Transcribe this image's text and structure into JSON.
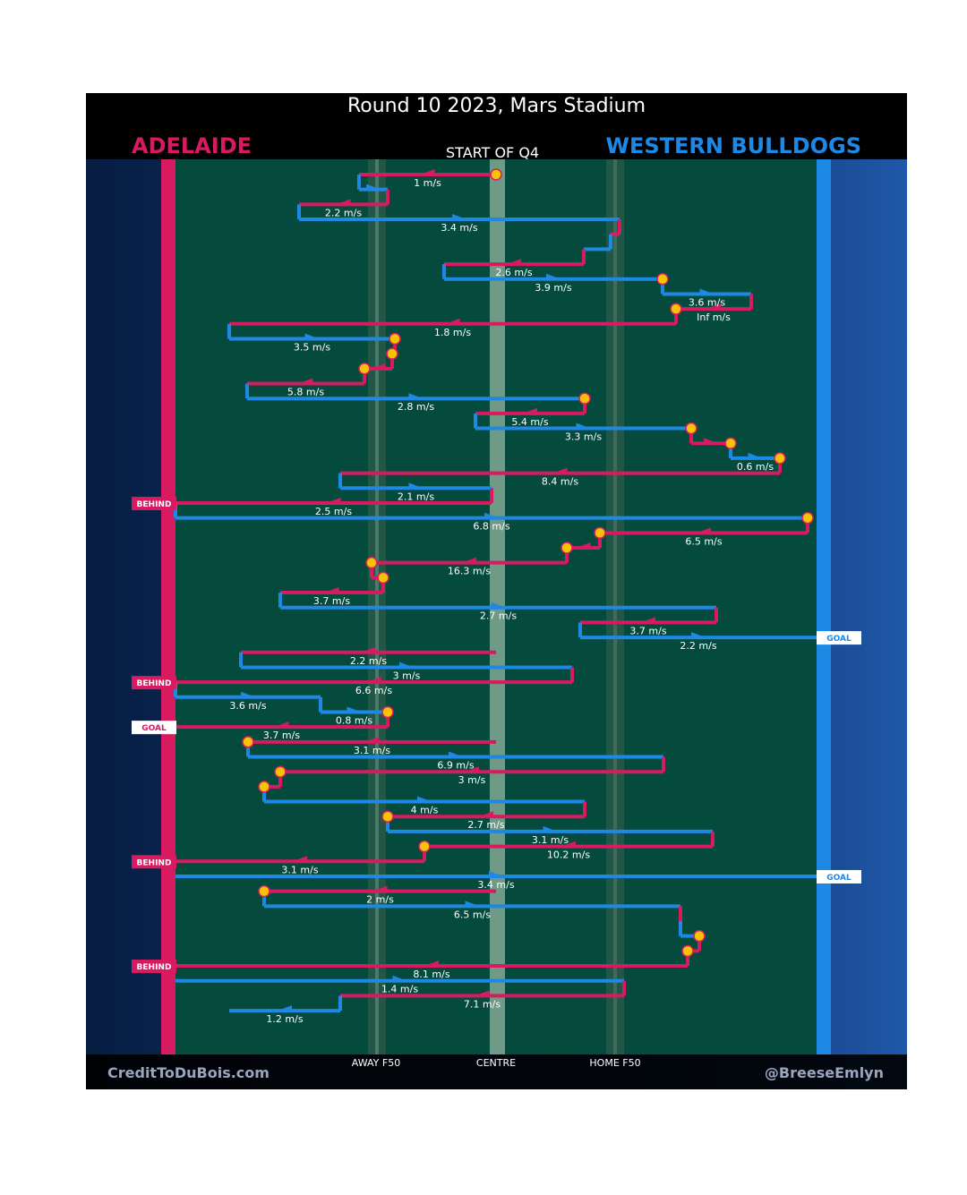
{
  "title": "Round 10 2023, Mars Stadium",
  "teams": {
    "away": "ADELAIDE",
    "home": "WESTERN BULLDOGS"
  },
  "period_label": "START OF Q4",
  "zone_labels": {
    "away_f50": "AWAY F50",
    "centre": "CENTRE",
    "home_f50": "HOME F50"
  },
  "credits": {
    "left": "CreditToDuBois.com",
    "right": "@BreeseEmlyn"
  },
  "colors": {
    "adelaide": "#d81b60",
    "bulldogs": "#1e88e5",
    "field": "#044b3e",
    "turnover_marker": "#f5c400"
  },
  "chart_data": {
    "type": "line",
    "chart_subtype": "possession chain",
    "x_axis": "field position",
    "ylim_rows": [
      0,
      60
    ],
    "legend": "none",
    "chain_start": {
      "row": 1,
      "x": 554
    },
    "chain": [
      {
        "team": "adelaide",
        "speed": "1 m/s",
        "x": 401,
        "row": 1
      },
      {
        "team": "bulldogs",
        "speed": "",
        "x": 433,
        "row": 2
      },
      {
        "team": "adelaide",
        "speed": "2.2 m/s",
        "x": 334,
        "row": 3
      },
      {
        "team": "bulldogs",
        "speed": "3.4 m/s",
        "x": 692,
        "row": 4
      },
      {
        "team": "adelaide",
        "speed": "",
        "x": 682,
        "row": 5
      },
      {
        "team": "bulldogs",
        "speed": "",
        "x": 652,
        "row": 6
      },
      {
        "team": "adelaide",
        "speed": "2.6 m/s",
        "x": 496,
        "row": 7
      },
      {
        "team": "bulldogs",
        "speed": "3.9 m/s",
        "x": 740,
        "row": 8,
        "marker": true
      },
      {
        "team": "bulldogs",
        "speed": "3.6 m/s",
        "x": 839,
        "row": 9
      },
      {
        "team": "adelaide",
        "speed": "Inf m/s",
        "x": 755,
        "row": 10,
        "marker": true
      },
      {
        "team": "adelaide",
        "speed": "1.8 m/s",
        "x": 256,
        "row": 11
      },
      {
        "team": "bulldogs",
        "speed": "3.5 m/s",
        "x": 441,
        "row": 12,
        "marker": true
      },
      {
        "team": "adelaide",
        "speed": "",
        "x": 438,
        "row": 13,
        "marker": true
      },
      {
        "team": "adelaide",
        "speed": "",
        "x": 407,
        "row": 14,
        "marker": true
      },
      {
        "team": "adelaide",
        "speed": "5.8 m/s",
        "x": 276,
        "row": 15
      },
      {
        "team": "bulldogs",
        "speed": "2.8 m/s",
        "x": 653,
        "row": 16,
        "marker": true
      },
      {
        "team": "adelaide",
        "speed": "5.4 m/s",
        "x": 531,
        "row": 17
      },
      {
        "team": "bulldogs",
        "speed": "3.3 m/s",
        "x": 772,
        "row": 18,
        "marker": true
      },
      {
        "team": "adelaide",
        "speed": "",
        "x": 816,
        "row": 19,
        "marker": true
      },
      {
        "team": "bulldogs",
        "speed": "0.6 m/s",
        "x": 871,
        "row": 20,
        "marker": true
      },
      {
        "team": "adelaide",
        "speed": "8.4 m/s",
        "x": 380,
        "row": 21
      },
      {
        "team": "bulldogs",
        "speed": "2.1 m/s",
        "x": 549,
        "row": 22
      },
      {
        "team": "adelaide",
        "speed": "2.5 m/s",
        "x": 196,
        "row": 23,
        "outcome": "BEHIND"
      },
      {
        "team": "bulldogs",
        "speed": "6.8 m/s",
        "x": 902,
        "row": 24,
        "marker": true
      },
      {
        "team": "adelaide",
        "speed": "6.5 m/s",
        "x": 670,
        "row": 25,
        "marker": true
      },
      {
        "team": "adelaide",
        "speed": "",
        "x": 633,
        "row": 26,
        "marker": true
      },
      {
        "team": "adelaide",
        "speed": "16.3 m/s",
        "x": 415,
        "row": 27,
        "marker": true
      },
      {
        "team": "adelaide",
        "speed": "",
        "x": 428,
        "row": 28,
        "marker": true
      },
      {
        "team": "adelaide",
        "speed": "3.7 m/s",
        "x": 313,
        "row": 29
      },
      {
        "team": "bulldogs",
        "speed": "2.7 m/s",
        "x": 800,
        "row": 30
      },
      {
        "team": "adelaide",
        "speed": "3.7 m/s",
        "x": 648,
        "row": 31
      },
      {
        "team": "bulldogs",
        "speed": "2.2 m/s",
        "x": 912,
        "row": 32,
        "outcome": "GOAL"
      },
      {
        "team": "adelaide",
        "speed": "2.2 m/s",
        "x": 269,
        "row": 33,
        "start": true
      },
      {
        "team": "bulldogs",
        "speed": "3 m/s",
        "x": 639,
        "row": 34
      },
      {
        "team": "adelaide",
        "speed": "6.6 m/s",
        "x": 196,
        "row": 35,
        "outcome": "BEHIND"
      },
      {
        "team": "bulldogs",
        "speed": "3.6 m/s",
        "x": 358,
        "row": 36
      },
      {
        "team": "bulldogs",
        "speed": "0.8 m/s",
        "x": 433,
        "row": 37,
        "marker": true
      },
      {
        "team": "adelaide",
        "speed": "3.7 m/s",
        "x": 196,
        "row": 38,
        "outcome": "GOAL"
      },
      {
        "team": "adelaide",
        "speed": "3.1 m/s",
        "x": 277,
        "row": 39,
        "start": true,
        "marker": true
      },
      {
        "team": "bulldogs",
        "speed": "6.9 m/s",
        "x": 741,
        "row": 40
      },
      {
        "team": "adelaide",
        "speed": "3 m/s",
        "x": 313,
        "row": 41,
        "marker": true
      },
      {
        "team": "adelaide",
        "speed": "",
        "x": 295,
        "row": 42,
        "marker": true
      },
      {
        "team": "bulldogs",
        "speed": "4 m/s",
        "x": 653,
        "row": 43
      },
      {
        "team": "adelaide",
        "speed": "2.7 m/s",
        "x": 433,
        "row": 44,
        "marker": true
      },
      {
        "team": "bulldogs",
        "speed": "3.1 m/s",
        "x": 796,
        "row": 45
      },
      {
        "team": "adelaide",
        "speed": "10.2 m/s",
        "x": 474,
        "row": 46,
        "marker": true
      },
      {
        "team": "adelaide",
        "speed": "3.1 m/s",
        "x": 196,
        "row": 47,
        "outcome": "BEHIND"
      },
      {
        "team": "bulldogs",
        "speed": "3.4 m/s",
        "x": 912,
        "row": 48,
        "start": true,
        "outcome": "GOAL"
      },
      {
        "team": "adelaide",
        "speed": "2 m/s",
        "x": 295,
        "row": 49,
        "start": true,
        "marker": true
      },
      {
        "team": "bulldogs",
        "speed": "6.5 m/s",
        "x": 760,
        "row": 50
      },
      {
        "team": "adelaide",
        "speed": "",
        "x": 760,
        "row": 51
      },
      {
        "team": "bulldogs",
        "speed": "",
        "x": 781,
        "row": 52,
        "marker": true
      },
      {
        "team": "adelaide",
        "speed": "",
        "x": 768,
        "row": 53,
        "marker": true
      },
      {
        "team": "adelaide",
        "speed": "8.1 m/s",
        "x": 196,
        "row": 54,
        "outcome": "BEHIND"
      },
      {
        "team": "bulldogs",
        "speed": "1.4 m/s",
        "x": 697,
        "row": 55,
        "start": true
      },
      {
        "team": "adelaide",
        "speed": "7.1 m/s",
        "x": 380,
        "row": 56
      },
      {
        "team": "bulldogs",
        "speed": "1.2 m/s",
        "x": 256,
        "row": 57
      }
    ]
  }
}
